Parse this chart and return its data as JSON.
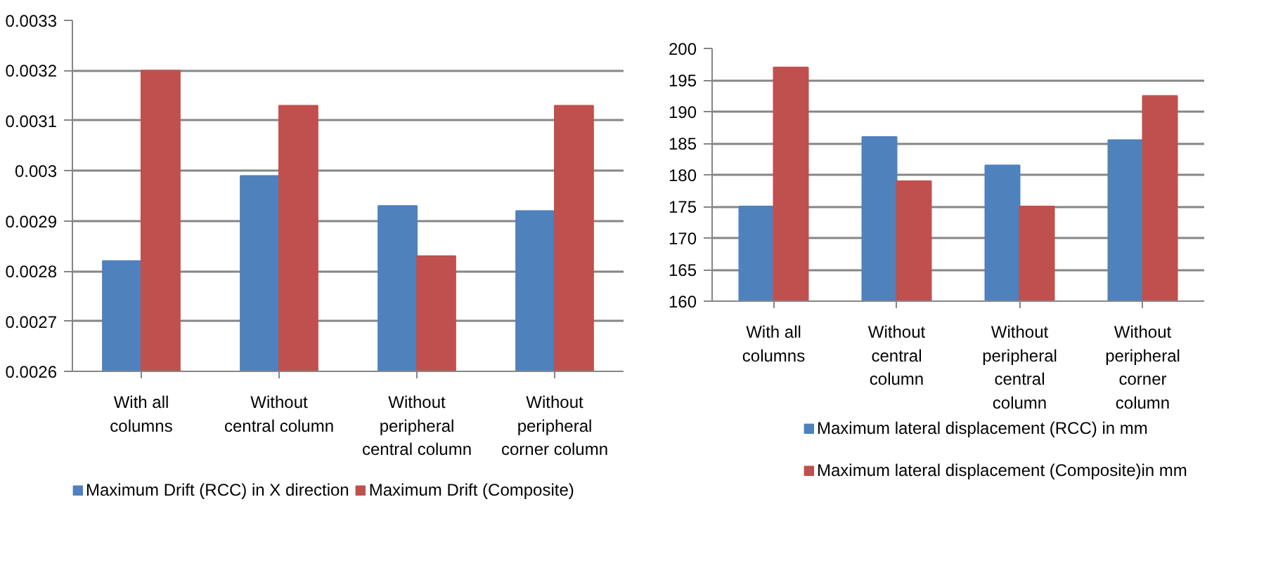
{
  "chart_data": [
    {
      "type": "bar",
      "categories": [
        "With all\ncolumns",
        "Without\ncentral column",
        "Without\nperipheral\ncentral column",
        "Without\nperipheral\ncorner column"
      ],
      "series": [
        {
          "name": "Maximum Drift (RCC) in X direction",
          "color": "#4f81bd",
          "values": [
            0.00282,
            0.00299,
            0.00293,
            0.00292
          ]
        },
        {
          "name": "Maximum Drift (Composite)",
          "color": "#c0504d",
          "values": [
            0.0032,
            0.00313,
            0.00283,
            0.00313
          ]
        }
      ],
      "ylim": [
        0.0026,
        0.0033
      ],
      "yticks": [
        0.0026,
        0.0027,
        0.0028,
        0.0029,
        0.003,
        0.0031,
        0.0032,
        0.0033
      ],
      "grid": "y",
      "legend": "bottom"
    },
    {
      "type": "bar",
      "categories": [
        "With all\ncolumns",
        "Without\ncentral\ncolumn",
        "Without\nperipheral\ncentral\ncolumn",
        "Without\nperipheral\ncorner\ncolumn"
      ],
      "series": [
        {
          "name": "Maximum lateral displacement (RCC) in mm",
          "color": "#4f81bd",
          "values": [
            175,
            186,
            181.5,
            185.5
          ]
        },
        {
          "name": "Maximum lateral displacement (Composite)in mm",
          "color": "#c0504d",
          "values": [
            197,
            179,
            175,
            192.5
          ]
        }
      ],
      "ylim": [
        160,
        200
      ],
      "yticks": [
        160,
        165,
        170,
        175,
        180,
        185,
        190,
        195,
        200
      ],
      "grid": "y",
      "legend": "bottom"
    }
  ]
}
